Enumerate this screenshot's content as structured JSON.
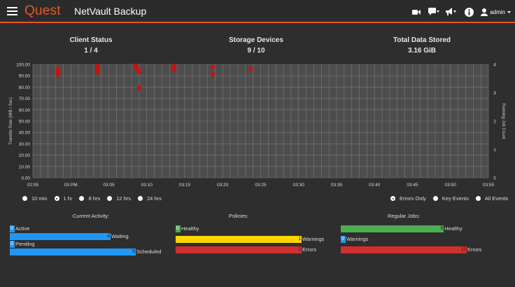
{
  "header": {
    "logo": "Quest",
    "title": "NetVault Backup",
    "user": "admin",
    "icons": [
      "menu-icon",
      "camera-icon",
      "chat-icon",
      "megaphone-icon",
      "info-icon",
      "user-icon"
    ]
  },
  "summary": [
    {
      "label": "Client Status",
      "value": "1 / 4"
    },
    {
      "label": "Storage Devices",
      "value": "9 / 10"
    },
    {
      "label": "Total Data Stored",
      "value": "3.16 GiB"
    }
  ],
  "chart_data": {
    "type": "scatter",
    "ylabel": "Transfer Rate (MiB / Sec)",
    "y2label": "Running Job Count",
    "ylim": [
      0,
      100
    ],
    "y2lim": [
      0,
      4
    ],
    "y_ticks": [
      "0.00",
      "10.00",
      "20.00",
      "30.00",
      "40.00",
      "50.00",
      "60.00",
      "70.00",
      "80.00",
      "90.00",
      "100.00"
    ],
    "y2_ticks": [
      "0",
      "1",
      "2",
      "3",
      "4"
    ],
    "x_ticks": [
      "02:55",
      "03 PM",
      "03:05",
      "03:10",
      "03:15",
      "03:20",
      "03:25",
      "03:30",
      "03:35",
      "03:40",
      "03:45",
      "03:50",
      "03:55"
    ],
    "grid": true,
    "point_color": "#cc1111",
    "points": [
      {
        "x": 3.3,
        "y": 96
      },
      {
        "x": 3.3,
        "y": 93.5
      },
      {
        "x": 3.3,
        "y": 91
      },
      {
        "x": 8.5,
        "y": 98.5
      },
      {
        "x": 8.5,
        "y": 96
      },
      {
        "x": 8.5,
        "y": 93
      },
      {
        "x": 13.6,
        "y": 99
      },
      {
        "x": 13.6,
        "y": 96.5
      },
      {
        "x": 14.0,
        "y": 94
      },
      {
        "x": 14.0,
        "y": 79
      },
      {
        "x": 18.6,
        "y": 98.5
      },
      {
        "x": 18.6,
        "y": 95
      },
      {
        "x": 23.7,
        "y": 98
      },
      {
        "x": 23.7,
        "y": 91.5
      },
      {
        "x": 28.7,
        "y": 96
      }
    ]
  },
  "ranges": [
    {
      "label": "10 min",
      "selected": false
    },
    {
      "label": "1 hr",
      "selected": true
    },
    {
      "label": "8 hrs",
      "selected": false
    },
    {
      "label": "12 hrs",
      "selected": false
    },
    {
      "label": "24 hrs",
      "selected": false
    }
  ],
  "filters": [
    {
      "label": "Errors Only",
      "selected": true
    },
    {
      "label": "Key Events",
      "selected": false
    },
    {
      "label": "All Events",
      "selected": false
    }
  ],
  "panels": {
    "activity": {
      "title": "Current Activity:",
      "max": 5,
      "rows": [
        {
          "label": "Active",
          "value": 0,
          "color": "#2196f3"
        },
        {
          "label": "Waiting",
          "value": 4,
          "color": "#2196f3"
        },
        {
          "label": "Pending",
          "value": 0,
          "color": "#2196f3"
        },
        {
          "label": "Scheduled",
          "value": 5,
          "color": "#2196f3"
        }
      ]
    },
    "policies": {
      "title": "Policies:",
      "max": 1,
      "rows": [
        {
          "label": "Healthy",
          "value": 0,
          "color": "#4caf50"
        },
        {
          "label": "Warnings",
          "value": 1,
          "color": "#ffd600"
        },
        {
          "label": "Errors",
          "value": 1,
          "color": "#d32f2f"
        }
      ]
    },
    "jobs": {
      "title": "Regular Jobs:",
      "max": 11,
      "rows": [
        {
          "label": "Healthy",
          "value": 9,
          "color": "#4caf50"
        },
        {
          "label": "Warnings",
          "value": 0,
          "color": "#2196f3"
        },
        {
          "label": "Errors",
          "value": 11,
          "color": "#d32f2f"
        }
      ]
    }
  }
}
